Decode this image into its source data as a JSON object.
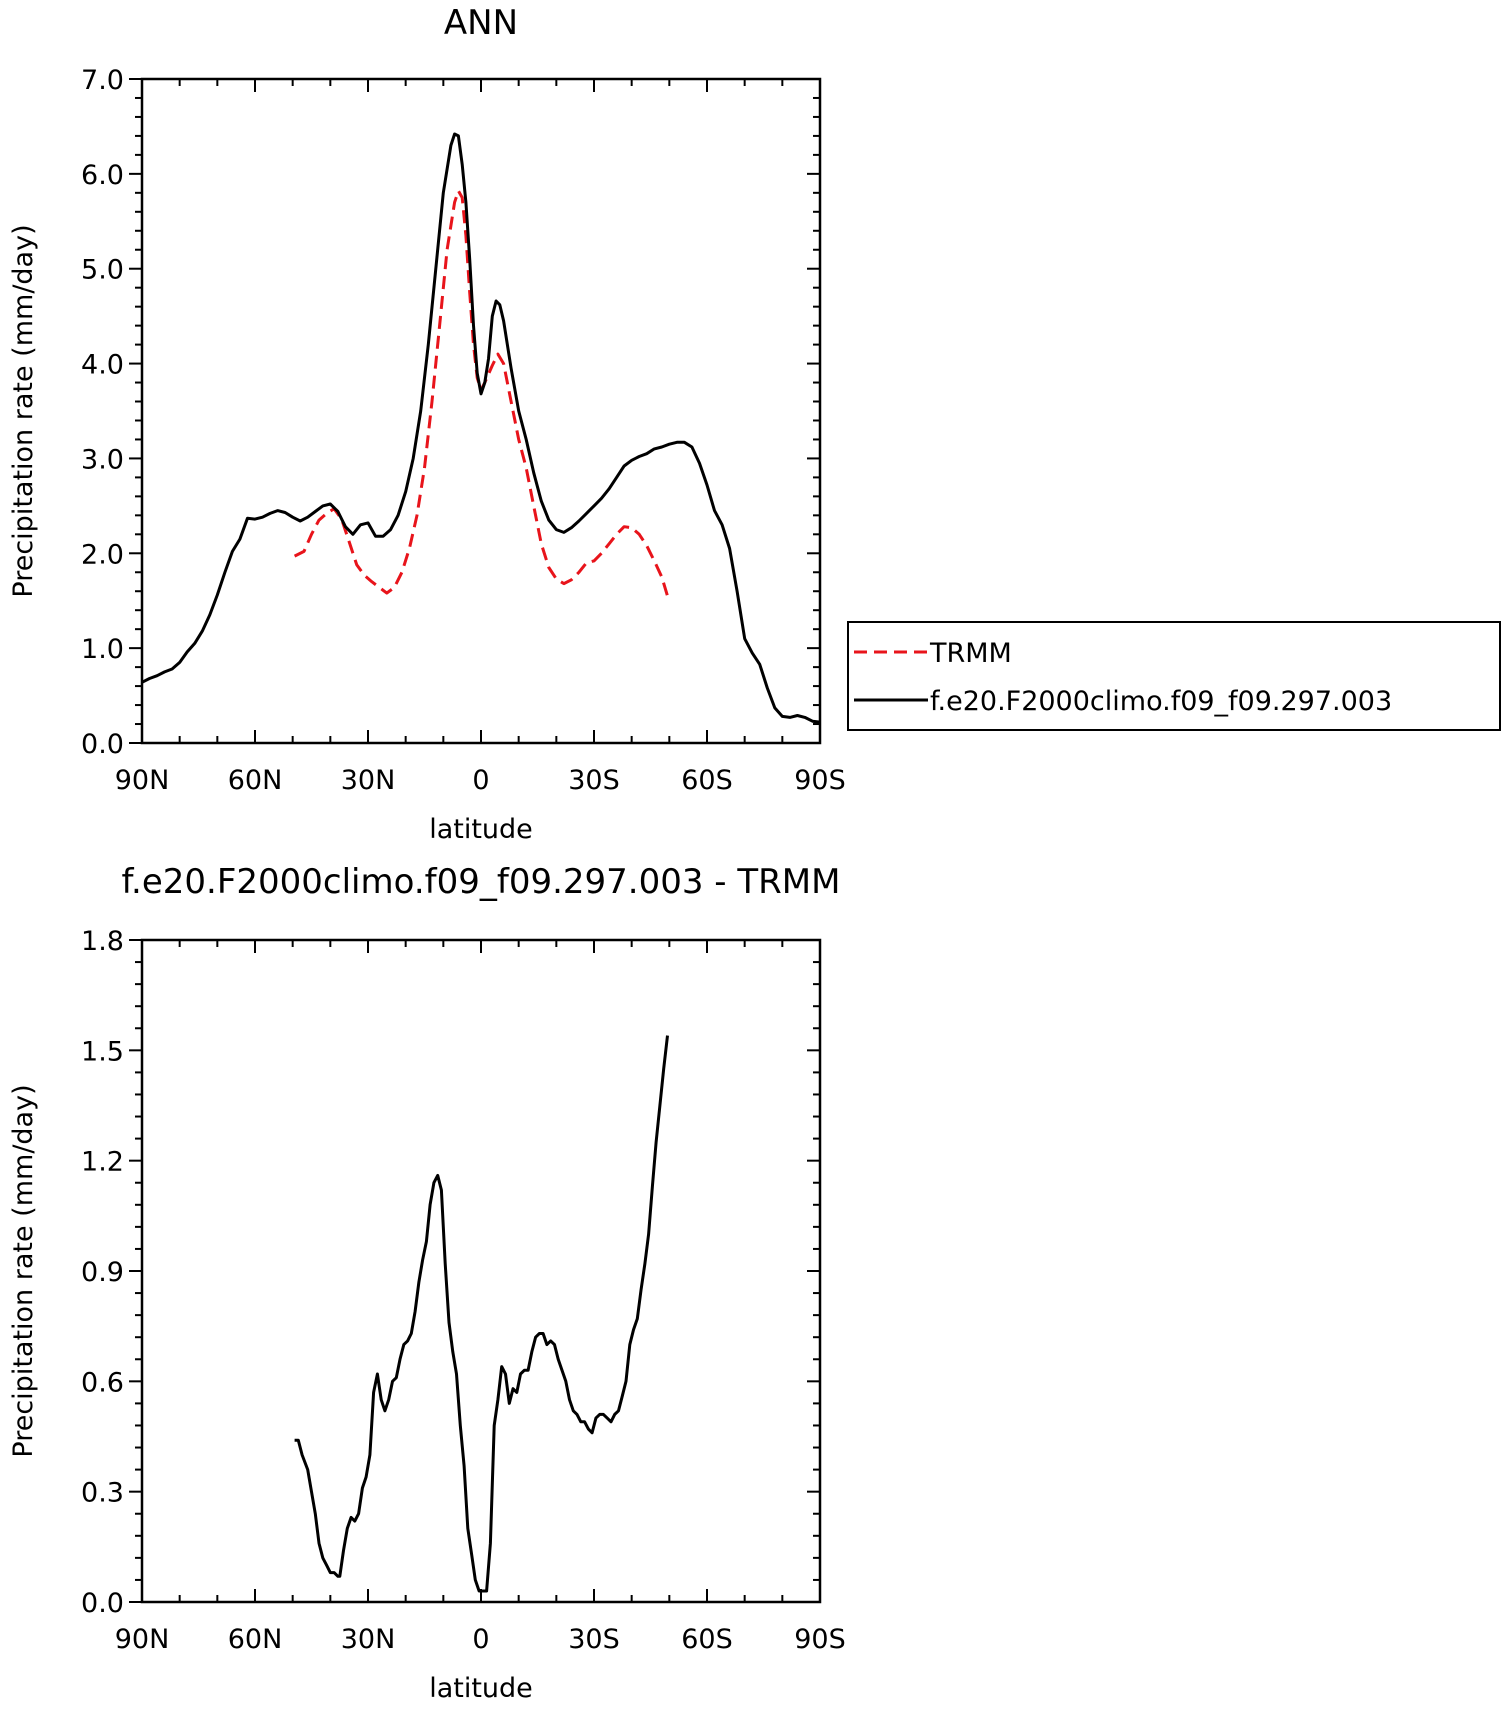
{
  "chart_data": [
    {
      "type": "line",
      "title": "ANN",
      "xlabel": "latitude",
      "ylabel": "Precipitation rate (mm/day)",
      "xlim": [
        90,
        -90
      ],
      "ylim": [
        0,
        7
      ],
      "xticks": [
        {
          "value": 90,
          "label": "90N"
        },
        {
          "value": 60,
          "label": "60N"
        },
        {
          "value": 30,
          "label": "30N"
        },
        {
          "value": 0,
          "label": "0"
        },
        {
          "value": -30,
          "label": "30S"
        },
        {
          "value": -60,
          "label": "60S"
        },
        {
          "value": -90,
          "label": "90S"
        }
      ],
      "yticks": [
        {
          "value": 0,
          "label": "0.0"
        },
        {
          "value": 1,
          "label": "1.0"
        },
        {
          "value": 2,
          "label": "2.0"
        },
        {
          "value": 3,
          "label": "3.0"
        },
        {
          "value": 4,
          "label": "4.0"
        },
        {
          "value": 5,
          "label": "5.0"
        },
        {
          "value": 6,
          "label": "6.0"
        },
        {
          "value": 7,
          "label": "7.0"
        }
      ],
      "grid": false,
      "legend_position": "right",
      "series": [
        {
          "name": "TRMM",
          "color": "#e8141b",
          "dash": "dashed",
          "x": [
            49.5,
            47,
            45,
            43,
            41,
            39,
            37,
            35,
            33,
            31,
            29,
            27,
            25,
            23,
            21,
            19,
            17,
            15,
            13,
            11,
            9,
            7,
            6,
            5,
            4,
            3,
            2,
            1,
            0,
            -1,
            -3,
            -4.5,
            -6,
            -8,
            -10,
            -12,
            -14,
            -16,
            -18,
            -20,
            -22,
            -24,
            -26,
            -28,
            -30,
            -32,
            -34,
            -36,
            -38,
            -40,
            -42,
            -44,
            -46,
            -48,
            -49.5
          ],
          "values": [
            1.97,
            2.02,
            2.2,
            2.35,
            2.42,
            2.47,
            2.36,
            2.12,
            1.88,
            1.77,
            1.7,
            1.64,
            1.58,
            1.64,
            1.8,
            2.05,
            2.4,
            2.9,
            3.6,
            4.4,
            5.2,
            5.7,
            5.82,
            5.75,
            5.35,
            4.75,
            4.2,
            3.85,
            3.72,
            3.8,
            3.98,
            4.1,
            4.0,
            3.6,
            3.2,
            2.9,
            2.5,
            2.1,
            1.85,
            1.73,
            1.68,
            1.72,
            1.8,
            1.9,
            1.92,
            2.0,
            2.1,
            2.2,
            2.28,
            2.27,
            2.2,
            2.08,
            1.92,
            1.75,
            1.55
          ]
        },
        {
          "name": "f.e20.F2000climo.f09_f09.297.003",
          "color": "#000000",
          "dash": "solid",
          "x": [
            90,
            88,
            86,
            84,
            82,
            80,
            78,
            76,
            74,
            72,
            70,
            68,
            66,
            64,
            62,
            60,
            58,
            56,
            54,
            52,
            50,
            48,
            46,
            44,
            42,
            40,
            38,
            36,
            34,
            32,
            30,
            28,
            26,
            24,
            22,
            20,
            18,
            16,
            14,
            12,
            10,
            8,
            7,
            6,
            5,
            4,
            3,
            2,
            1,
            0,
            -1,
            -2,
            -3,
            -4,
            -5,
            -6,
            -8,
            -10,
            -12,
            -14,
            -16,
            -18,
            -20,
            -22,
            -24,
            -26,
            -28,
            -30,
            -32,
            -34,
            -36,
            -38,
            -40,
            -42,
            -44,
            -46,
            -48,
            -50,
            -52,
            -54,
            -56,
            -58,
            -60,
            -62,
            -64,
            -66,
            -68,
            -70,
            -72,
            -74,
            -76,
            -78,
            -80,
            -82,
            -84,
            -86,
            -88,
            -90
          ],
          "values": [
            0.64,
            0.68,
            0.71,
            0.75,
            0.78,
            0.85,
            0.96,
            1.05,
            1.18,
            1.35,
            1.56,
            1.8,
            2.02,
            2.15,
            2.37,
            2.36,
            2.38,
            2.42,
            2.45,
            2.43,
            2.38,
            2.34,
            2.38,
            2.44,
            2.5,
            2.52,
            2.44,
            2.28,
            2.2,
            2.3,
            2.32,
            2.18,
            2.18,
            2.25,
            2.4,
            2.65,
            3.0,
            3.5,
            4.2,
            5.0,
            5.8,
            6.3,
            6.42,
            6.4,
            6.1,
            5.7,
            5.1,
            4.4,
            3.9,
            3.68,
            3.8,
            4.05,
            4.5,
            4.66,
            4.62,
            4.45,
            3.95,
            3.5,
            3.2,
            2.85,
            2.55,
            2.35,
            2.25,
            2.22,
            2.27,
            2.34,
            2.42,
            2.5,
            2.58,
            2.68,
            2.8,
            2.92,
            2.98,
            3.02,
            3.05,
            3.1,
            3.12,
            3.15,
            3.17,
            3.17,
            3.12,
            2.95,
            2.72,
            2.45,
            2.3,
            2.05,
            1.6,
            1.1,
            0.95,
            0.83,
            0.58,
            0.37,
            0.28,
            0.27,
            0.29,
            0.27,
            0.23,
            0.22
          ]
        }
      ]
    },
    {
      "type": "line",
      "title": "f.e20.F2000climo.f09_f09.297.003 - TRMM",
      "xlabel": "latitude",
      "ylabel": "Precipitation rate (mm/day)",
      "xlim": [
        90,
        -90
      ],
      "ylim": [
        0,
        1.8
      ],
      "xticks": [
        {
          "value": 90,
          "label": "90N"
        },
        {
          "value": 60,
          "label": "60N"
        },
        {
          "value": 30,
          "label": "30N"
        },
        {
          "value": 0,
          "label": "0"
        },
        {
          "value": -30,
          "label": "30S"
        },
        {
          "value": -60,
          "label": "60S"
        },
        {
          "value": -90,
          "label": "90S"
        }
      ],
      "yticks": [
        {
          "value": 0,
          "label": "0.0"
        },
        {
          "value": 0.3,
          "label": "0.3"
        },
        {
          "value": 0.6,
          "label": "0.6"
        },
        {
          "value": 0.9,
          "label": "0.9"
        },
        {
          "value": 1.2,
          "label": "1.2"
        },
        {
          "value": 1.5,
          "label": "1.5"
        },
        {
          "value": 1.8,
          "label": "1.8"
        }
      ],
      "grid": false,
      "series": [
        {
          "color": "#000000",
          "dash": "solid",
          "x": [
            49.5,
            48.5,
            47.5,
            46,
            45,
            44,
            43,
            42,
            41,
            40,
            39,
            38,
            37.5,
            36.5,
            35.5,
            34.5,
            33.5,
            32.5,
            31.5,
            30.5,
            29.5,
            28.5,
            27.5,
            26.5,
            25.5,
            24.5,
            23.5,
            22.5,
            21.5,
            20.5,
            19.5,
            18.5,
            17.5,
            16.5,
            15.5,
            14.5,
            13.5,
            12.5,
            11.5,
            10.5,
            9.5,
            8.5,
            7.5,
            6.5,
            5.5,
            4.5,
            3.5,
            2.5,
            1.5,
            0.5,
            -0.5,
            -1.5,
            -2.5,
            -3.5,
            -4.5,
            -5.5,
            -6.5,
            -7.5,
            -8.5,
            -9.5,
            -10.5,
            -11.5,
            -12.5,
            -13.5,
            -14.5,
            -15.5,
            -16.5,
            -17.5,
            -18.5,
            -19.5,
            -20.5,
            -21.5,
            -22.5,
            -23.5,
            -24.5,
            -25.5,
            -26.5,
            -27.5,
            -28.5,
            -29.5,
            -30.5,
            -31.5,
            -32.5,
            -33.5,
            -34.5,
            -35.5,
            -36.5,
            -37.5,
            -38.5,
            -39.5,
            -40.5,
            -41.5,
            -42.5,
            -43.5,
            -44.5,
            -45.5,
            -46.5,
            -47.5,
            -48.5,
            -49.5
          ],
          "values": [
            0.44,
            0.44,
            0.4,
            0.36,
            0.3,
            0.24,
            0.16,
            0.12,
            0.1,
            0.08,
            0.08,
            0.07,
            0.07,
            0.14,
            0.2,
            0.23,
            0.22,
            0.24,
            0.31,
            0.34,
            0.4,
            0.57,
            0.62,
            0.55,
            0.52,
            0.55,
            0.6,
            0.61,
            0.66,
            0.7,
            0.71,
            0.73,
            0.79,
            0.87,
            0.93,
            0.98,
            1.08,
            1.14,
            1.16,
            1.12,
            0.92,
            0.76,
            0.68,
            0.62,
            0.48,
            0.37,
            0.2,
            0.13,
            0.06,
            0.03,
            0.03,
            0.03,
            0.16,
            0.48,
            0.55,
            0.64,
            0.62,
            0.54,
            0.58,
            0.57,
            0.62,
            0.63,
            0.63,
            0.68,
            0.72,
            0.73,
            0.73,
            0.7,
            0.71,
            0.7,
            0.66,
            0.63,
            0.6,
            0.55,
            0.52,
            0.51,
            0.49,
            0.49,
            0.47,
            0.46,
            0.5,
            0.51,
            0.51,
            0.5,
            0.49,
            0.51,
            0.52,
            0.56,
            0.6,
            0.7,
            0.74,
            0.77,
            0.85,
            0.92,
            1.0,
            1.13,
            1.25,
            1.35,
            1.45,
            1.54
          ]
        }
      ]
    }
  ]
}
